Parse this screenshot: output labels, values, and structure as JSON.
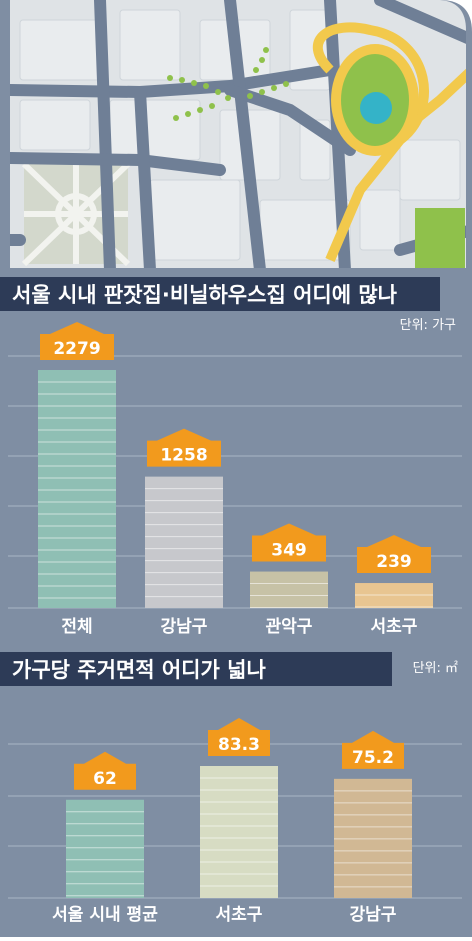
{
  "colors": {
    "panel": "#7f8ea3",
    "title_band": "#2d3b57",
    "badge": "#f29a1d",
    "teal_bar": "#8fbfb4",
    "gray_bar": "#c7c8cc",
    "khaki_bar": "#c7c2a6",
    "sand_bar": "#e8c591",
    "cream_bar": "#d7dcc3",
    "tan_bar": "#d1b894",
    "map_bg": "#dfe3e6",
    "map_road": "#6f7f96",
    "park": "#8fc14b",
    "park_ring": "#f2c94c",
    "pond": "#34b3c8"
  },
  "map": {
    "icon": "city-map-illustration"
  },
  "chart_data": [
    {
      "type": "bar",
      "title": "서울 시내 판잣집·비닐하우스집 어디에 많나",
      "unit": "단위: 가구",
      "categories": [
        "전체",
        "강남구",
        "관악구",
        "서초구"
      ],
      "values": [
        2279,
        1258,
        349,
        239
      ],
      "value_labels": [
        "2279",
        "1258",
        "349",
        "239"
      ],
      "ylim": [
        0,
        2279
      ],
      "grid": true,
      "label_style": "house-shaped badge"
    },
    {
      "type": "bar",
      "title": "가구당 주거면적 어디가 넓나",
      "unit": "단위: ㎡",
      "categories": [
        "서울 시내 평균",
        "서초구",
        "강남구"
      ],
      "values": [
        62,
        83.3,
        75.2
      ],
      "value_labels": [
        "62",
        "83.3",
        "75.2"
      ],
      "ylim": [
        0,
        83.3
      ],
      "grid": true,
      "label_style": "house-shaped badge"
    }
  ]
}
